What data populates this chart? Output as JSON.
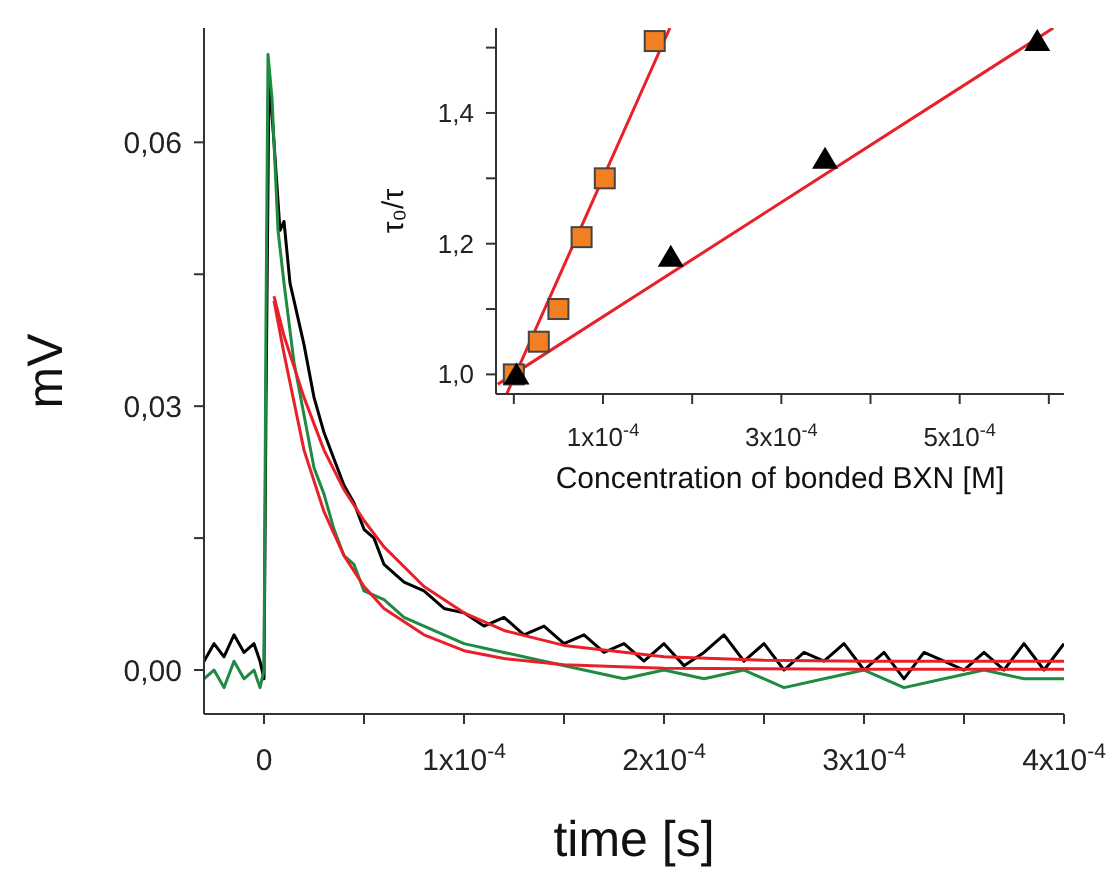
{
  "chart_data": [
    {
      "type": "line",
      "xlabel": "time [s]",
      "ylabel": "mV",
      "xlim": [
        -3e-05,
        0.0004
      ],
      "ylim": [
        -0.005,
        0.073
      ],
      "xticks": [
        {
          "value": 0,
          "label": "0"
        },
        {
          "value": 5e-05,
          "label": null
        },
        {
          "value": 0.0001,
          "label": "1x10$^{-4}$"
        },
        {
          "value": 0.00015,
          "label": null
        },
        {
          "value": 0.0002,
          "label": "2x10$^{-4}$"
        },
        {
          "value": 0.00025,
          "label": null
        },
        {
          "value": 0.0003,
          "label": "3x10$^{-4}$"
        },
        {
          "value": 0.00035,
          "label": null
        },
        {
          "value": 0.0004,
          "label": "4x10$^{-4}$"
        }
      ],
      "yticks": [
        {
          "value": 0,
          "label": "0,00"
        },
        {
          "value": 0.015,
          "label": null
        },
        {
          "value": 0.03,
          "label": "0,03"
        },
        {
          "value": 0.045,
          "label": null
        },
        {
          "value": 0.06,
          "label": "0,06"
        }
      ],
      "series": [
        {
          "color": "#000000",
          "x": [
            -3e-05,
            -2.5e-05,
            -2e-05,
            -1.5e-05,
            -1e-05,
            -5e-06,
            -2e-06,
            0,
            1e-06,
            2.5e-06,
            5e-06,
            8e-06,
            1e-05,
            1.3e-05,
            1.6e-05,
            2e-05,
            2.5e-05,
            3e-05,
            3.5e-05,
            4e-05,
            4.5e-05,
            5e-05,
            5.5e-05,
            6e-05,
            7e-05,
            8e-05,
            9e-05,
            0.0001,
            0.00011,
            0.00012,
            0.00013,
            0.00014,
            0.00015,
            0.00016,
            0.00017,
            0.00018,
            0.00019,
            0.0002,
            0.00021,
            0.00022,
            0.00023,
            0.00024,
            0.00025,
            0.00026,
            0.00027,
            0.00028,
            0.00029,
            0.0003,
            0.00031,
            0.00032,
            0.00033,
            0.00034,
            0.00035,
            0.00036,
            0.00037,
            0.00038,
            0.00039,
            0.0004
          ],
          "values": [
            0.001,
            0.003,
            0.0015,
            0.004,
            0.002,
            0.003,
            0.001,
            -0.001,
            0.03,
            0.0675,
            0.06,
            0.05,
            0.051,
            0.044,
            0.041,
            0.037,
            0.031,
            0.027,
            0.024,
            0.021,
            0.019,
            0.016,
            0.015,
            0.012,
            0.01,
            0.009,
            0.007,
            0.0065,
            0.005,
            0.006,
            0.004,
            0.005,
            0.003,
            0.004,
            0.002,
            0.003,
            0.001,
            0.003,
            0.0005,
            0.002,
            0.004,
            0.001,
            0.003,
            0,
            0.002,
            0.001,
            0.003,
            0,
            0.002,
            -0.001,
            0.002,
            0.001,
            0,
            0.002,
            0,
            0.003,
            0,
            0.003
          ]
        },
        {
          "color": "#1e8a42",
          "x": [
            -3e-05,
            -2.5e-05,
            -2e-05,
            -1.5e-05,
            -1e-05,
            -5e-06,
            -2e-06,
            0,
            1e-06,
            2e-06,
            4e-06,
            7e-06,
            1e-05,
            1.5e-05,
            2e-05,
            2.5e-05,
            3e-05,
            3.5e-05,
            4e-05,
            4.5e-05,
            5e-05,
            6e-05,
            7e-05,
            8e-05,
            9e-05,
            0.0001,
            0.00012,
            0.00014,
            0.00016,
            0.00018,
            0.0002,
            0.00022,
            0.00024,
            0.00026,
            0.00028,
            0.0003,
            0.00032,
            0.00034,
            0.00036,
            0.00038,
            0.0004
          ],
          "values": [
            -0.001,
            0,
            -0.002,
            0.001,
            -0.001,
            0,
            -0.002,
            0,
            0.04,
            0.07,
            0.065,
            0.05,
            0.044,
            0.035,
            0.029,
            0.023,
            0.02,
            0.016,
            0.013,
            0.012,
            0.009,
            0.008,
            0.006,
            0.005,
            0.004,
            0.003,
            0.002,
            0.001,
            0,
            -0.001,
            0,
            -0.001,
            0,
            -0.002,
            -0.001,
            0,
            -0.002,
            -0.001,
            0,
            -0.001,
            -0.001
          ]
        },
        {
          "color": "#e8202a",
          "x": [
            5e-06,
            1e-05,
            2e-05,
            3e-05,
            4e-05,
            5e-05,
            6e-05,
            8e-05,
            0.0001,
            0.00012,
            0.00015,
            0.0002,
            0.00025,
            0.0003,
            0.0004
          ],
          "values": [
            0.0425,
            0.038,
            0.031,
            0.025,
            0.0205,
            0.017,
            0.014,
            0.0095,
            0.0065,
            0.0045,
            0.0028,
            0.0015,
            0.0011,
            0.001,
            0.001
          ]
        },
        {
          "color": "#e8202a",
          "x": [
            5e-06,
            1e-05,
            2e-05,
            3e-05,
            4e-05,
            5e-05,
            6e-05,
            8e-05,
            0.0001,
            0.00012,
            0.00015,
            0.0002,
            0.0003,
            0.0004
          ],
          "values": [
            0.042,
            0.036,
            0.025,
            0.018,
            0.013,
            0.0095,
            0.007,
            0.004,
            0.0022,
            0.0013,
            0.0006,
            0.0002,
            0.0001,
            0.0001
          ]
        }
      ]
    },
    {
      "type": "scatter",
      "xlabel": "Concentration of bonded BXN [M]",
      "ylabel": "τ₀/τ",
      "xlim": [
        -2e-05,
        0.000617
      ],
      "ylim": [
        0.97,
        1.53
      ],
      "xticks": [
        {
          "value": 0,
          "label": null
        },
        {
          "value": 0.0001,
          "label": "1x10$^{-4}$"
        },
        {
          "value": 0.0002,
          "label": null
        },
        {
          "value": 0.0003,
          "label": "3x10$^{-4}$"
        },
        {
          "value": 0.0004,
          "label": null
        },
        {
          "value": 0.0005,
          "label": "5x10$^{-4}$"
        },
        {
          "value": 0.0006,
          "label": null
        }
      ],
      "yticks": [
        {
          "value": 1.0,
          "label": "1,0"
        },
        {
          "value": 1.1,
          "label": null
        },
        {
          "value": 1.2,
          "label": "1,2"
        },
        {
          "value": 1.3,
          "label": null
        },
        {
          "value": 1.4,
          "label": "1,4"
        },
        {
          "value": 1.5,
          "label": null
        }
      ],
      "series": [
        {
          "type": "line",
          "color": "#e8202a",
          "marker": "none",
          "x": [
            -8e-06,
            0.000175
          ],
          "values": [
            0.97,
            1.53
          ]
        },
        {
          "type": "line",
          "color": "#e8202a",
          "marker": "none",
          "x": [
            -1.8e-05,
            0.000605
          ],
          "values": [
            0.985,
            1.53
          ]
        },
        {
          "color": "#f28022",
          "marker": "square",
          "x": [
            0,
            2.8e-05,
            5e-05,
            7.6e-05,
            0.000102,
            0.000158
          ],
          "values": [
            1.0,
            1.05,
            1.1,
            1.21,
            1.3,
            1.51
          ]
        },
        {
          "color": "#000000",
          "marker": "triangle",
          "x": [
            3e-06,
            0.000176,
            0.000349,
            0.000587
          ],
          "values": [
            1.0,
            1.18,
            1.33,
            1.51
          ]
        }
      ]
    }
  ]
}
